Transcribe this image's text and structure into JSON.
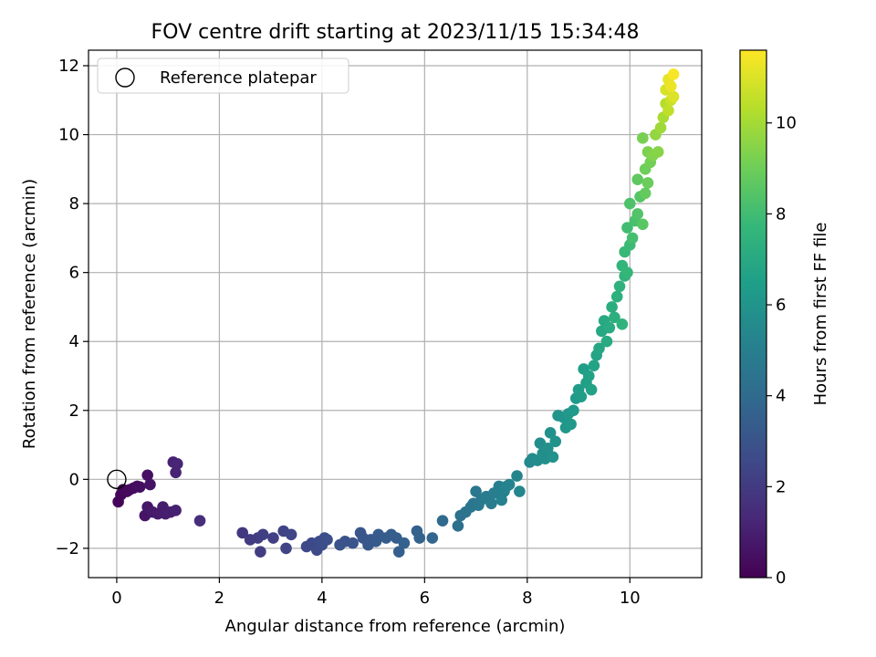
{
  "chart_data": {
    "type": "scatter",
    "title": "FOV centre drift starting at 2023/11/15 15:34:48",
    "xlabel": "Angular distance from reference (arcmin)",
    "ylabel": "Rotation from reference (arcmin)",
    "xlim": [
      -0.55,
      11.4
    ],
    "ylim": [
      -2.85,
      12.45
    ],
    "xticks": [
      "0",
      "2",
      "4",
      "6",
      "8",
      "10"
    ],
    "yticks": [
      "−2",
      "0",
      "2",
      "4",
      "6",
      "8",
      "10",
      "12"
    ],
    "grid": true,
    "legend": {
      "position": "top-left",
      "entries": [
        {
          "label": "Reference platepar",
          "marker": "open-circle",
          "x": 0,
          "y": 0
        }
      ]
    },
    "colorbar": {
      "label": "Hours from first FF file",
      "min": 0,
      "max": 11.6,
      "ticks": [
        "0",
        "2",
        "4",
        "6",
        "8",
        "10"
      ],
      "colormap": "viridis",
      "stops": [
        "#440154",
        "#482878",
        "#3e4a89",
        "#31688e",
        "#26828e",
        "#1f9e89",
        "#35b779",
        "#6ece58",
        "#b5de2b",
        "#fde725"
      ]
    },
    "points_columns": [
      "x",
      "y",
      "hours"
    ],
    "points": [
      [
        0.03,
        -0.65,
        0.1
      ],
      [
        0.08,
        -0.45,
        0.15
      ],
      [
        0.12,
        -0.3,
        0.2
      ],
      [
        0.2,
        -0.35,
        0.25
      ],
      [
        0.25,
        -0.3,
        0.3
      ],
      [
        0.33,
        -0.25,
        0.35
      ],
      [
        0.4,
        -0.2,
        0.4
      ],
      [
        0.45,
        -0.22,
        0.45
      ],
      [
        0.6,
        0.12,
        0.5
      ],
      [
        0.65,
        -0.15,
        0.55
      ],
      [
        0.55,
        -1.05,
        0.6
      ],
      [
        0.6,
        -0.8,
        0.7
      ],
      [
        0.7,
        -0.95,
        0.8
      ],
      [
        0.8,
        -1.0,
        0.85
      ],
      [
        0.9,
        -0.8,
        0.9
      ],
      [
        0.95,
        -1.0,
        0.95
      ],
      [
        1.05,
        -0.95,
        1.0
      ],
      [
        1.15,
        -0.9,
        1.05
      ],
      [
        1.1,
        0.5,
        1.1
      ],
      [
        1.15,
        0.2,
        1.15
      ],
      [
        1.18,
        0.45,
        1.2
      ],
      [
        1.62,
        -1.2,
        1.5
      ],
      [
        2.45,
        -1.55,
        1.9
      ],
      [
        2.6,
        -1.75,
        2.0
      ],
      [
        2.75,
        -1.7,
        2.05
      ],
      [
        2.8,
        -2.1,
        2.1
      ],
      [
        2.85,
        -1.6,
        2.15
      ],
      [
        3.05,
        -1.7,
        2.2
      ],
      [
        3.25,
        -1.5,
        2.3
      ],
      [
        3.3,
        -2.0,
        2.35
      ],
      [
        3.4,
        -1.6,
        2.4
      ],
      [
        3.7,
        -1.95,
        2.5
      ],
      [
        3.8,
        -1.85,
        2.55
      ],
      [
        3.9,
        -2.05,
        2.6
      ],
      [
        3.95,
        -1.8,
        2.65
      ],
      [
        4.0,
        -1.9,
        2.7
      ],
      [
        4.05,
        -1.7,
        2.75
      ],
      [
        4.1,
        -1.75,
        2.8
      ],
      [
        4.35,
        -1.9,
        2.9
      ],
      [
        4.45,
        -1.8,
        2.95
      ],
      [
        4.6,
        -1.85,
        3.0
      ],
      [
        4.75,
        -1.55,
        3.05
      ],
      [
        4.8,
        -1.7,
        3.1
      ],
      [
        4.9,
        -1.9,
        3.15
      ],
      [
        4.95,
        -1.75,
        3.2
      ],
      [
        5.05,
        -1.8,
        3.25
      ],
      [
        5.1,
        -1.6,
        3.3
      ],
      [
        5.25,
        -1.7,
        3.35
      ],
      [
        5.35,
        -1.6,
        3.4
      ],
      [
        5.45,
        -1.7,
        3.45
      ],
      [
        5.5,
        -2.1,
        3.5
      ],
      [
        5.6,
        -1.85,
        3.55
      ],
      [
        5.85,
        -1.5,
        3.6
      ],
      [
        5.9,
        -1.7,
        3.65
      ],
      [
        6.15,
        -1.7,
        3.8
      ],
      [
        6.35,
        -1.2,
        4.0
      ],
      [
        6.65,
        -1.35,
        4.2
      ],
      [
        6.7,
        -1.05,
        4.3
      ],
      [
        6.8,
        -0.95,
        4.4
      ],
      [
        6.9,
        -0.8,
        4.5
      ],
      [
        6.95,
        -0.7,
        4.55
      ],
      [
        7.0,
        -0.35,
        4.6
      ],
      [
        7.05,
        -0.75,
        4.65
      ],
      [
        7.1,
        -0.6,
        4.7
      ],
      [
        7.2,
        -0.5,
        4.8
      ],
      [
        7.3,
        -0.7,
        4.85
      ],
      [
        7.35,
        -0.4,
        4.9
      ],
      [
        7.45,
        -0.2,
        5.0
      ],
      [
        7.5,
        -0.6,
        5.05
      ],
      [
        7.55,
        -0.35,
        5.1
      ],
      [
        7.6,
        -0.2,
        5.15
      ],
      [
        7.65,
        -0.15,
        5.2
      ],
      [
        7.8,
        0.1,
        5.3
      ],
      [
        7.85,
        -0.35,
        5.35
      ],
      [
        8.05,
        0.5,
        5.5
      ],
      [
        8.1,
        0.6,
        5.55
      ],
      [
        8.2,
        0.55,
        5.6
      ],
      [
        8.25,
        1.05,
        5.65
      ],
      [
        8.3,
        0.75,
        5.7
      ],
      [
        8.35,
        0.6,
        5.75
      ],
      [
        8.4,
        0.9,
        5.8
      ],
      [
        8.45,
        1.35,
        5.85
      ],
      [
        8.5,
        0.65,
        5.9
      ],
      [
        8.55,
        1.1,
        5.95
      ],
      [
        8.6,
        1.85,
        6.0
      ],
      [
        8.7,
        1.8,
        6.05
      ],
      [
        8.75,
        1.5,
        6.1
      ],
      [
        8.8,
        1.9,
        6.15
      ],
      [
        8.85,
        1.6,
        6.2
      ],
      [
        8.9,
        2.0,
        6.25
      ],
      [
        8.95,
        2.35,
        6.3
      ],
      [
        9.0,
        2.6,
        6.35
      ],
      [
        9.05,
        2.4,
        6.4
      ],
      [
        9.1,
        3.2,
        6.5
      ],
      [
        9.15,
        2.8,
        6.55
      ],
      [
        9.2,
        3.0,
        6.6
      ],
      [
        9.25,
        2.6,
        6.65
      ],
      [
        9.3,
        3.3,
        6.7
      ],
      [
        9.35,
        3.6,
        6.8
      ],
      [
        9.4,
        3.8,
        6.85
      ],
      [
        9.45,
        4.3,
        6.9
      ],
      [
        9.5,
        4.6,
        7.0
      ],
      [
        9.55,
        4.0,
        7.05
      ],
      [
        9.6,
        4.4,
        7.1
      ],
      [
        9.65,
        5.0,
        7.2
      ],
      [
        9.7,
        4.7,
        7.25
      ],
      [
        9.75,
        5.3,
        7.3
      ],
      [
        9.8,
        5.6,
        7.4
      ],
      [
        9.85,
        4.5,
        7.45
      ],
      [
        9.9,
        5.9,
        7.5
      ],
      [
        9.85,
        6.2,
        7.6
      ],
      [
        9.95,
        6.0,
        7.7
      ],
      [
        9.9,
        6.6,
        7.8
      ],
      [
        10.0,
        6.8,
        7.9
      ],
      [
        9.95,
        7.3,
        8.0
      ],
      [
        10.05,
        7.0,
        8.1
      ],
      [
        10.1,
        7.5,
        8.2
      ],
      [
        10.0,
        8.0,
        8.3
      ],
      [
        10.15,
        7.7,
        8.4
      ],
      [
        10.2,
        8.2,
        8.5
      ],
      [
        10.25,
        7.4,
        8.55
      ],
      [
        10.15,
        8.7,
        8.7
      ],
      [
        10.3,
        8.3,
        8.8
      ],
      [
        10.35,
        8.6,
        8.9
      ],
      [
        10.3,
        9.0,
        9.0
      ],
      [
        10.4,
        9.2,
        9.1
      ],
      [
        10.25,
        9.9,
        9.2
      ],
      [
        10.35,
        9.5,
        9.3
      ],
      [
        10.45,
        9.4,
        9.4
      ],
      [
        10.55,
        9.5,
        9.5
      ],
      [
        10.5,
        10.0,
        9.7
      ],
      [
        10.6,
        10.2,
        9.9
      ],
      [
        10.65,
        10.5,
        10.1
      ],
      [
        10.7,
        10.9,
        10.3
      ],
      [
        10.75,
        10.7,
        10.5
      ],
      [
        10.8,
        11.0,
        10.7
      ],
      [
        10.7,
        11.3,
        10.9
      ],
      [
        10.85,
        11.1,
        11.0
      ],
      [
        10.75,
        11.6,
        11.2
      ],
      [
        10.8,
        11.4,
        11.3
      ],
      [
        10.85,
        11.75,
        11.5
      ]
    ]
  }
}
